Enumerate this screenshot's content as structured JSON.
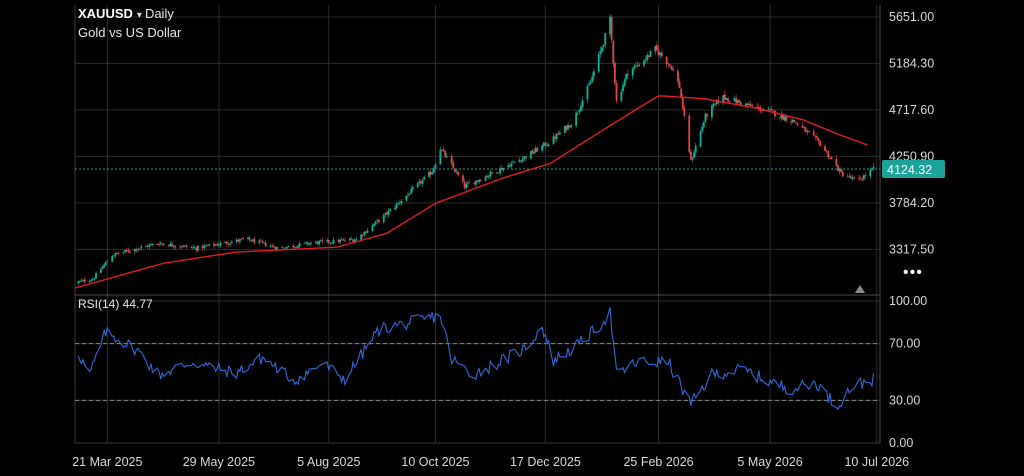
{
  "header": {
    "symbol": "XAUUSD",
    "caret": "▾",
    "timeframe": "Daily",
    "subtitle": "Gold vs US Dollar"
  },
  "colors": {
    "background": "#000000",
    "up_candle": "#0bb39a",
    "down_candle": "#e04848",
    "moving_average": "#e01c24",
    "rsi_line": "#2f6bd8",
    "price_line": "#1aa39a",
    "price_badge": "#1aa39a",
    "grid": "#2b2b2b"
  },
  "icons": {
    "more": "more-dots-icon",
    "scroll": "triangle-up-icon"
  },
  "more_glyph": "•••",
  "current_price_label": "4124.32",
  "rsi_label": "RSI(14) 44.77",
  "chart_data": [
    {
      "type": "candlestick",
      "title": "XAUUSD ▾ Daily",
      "subtitle": "Gold vs US Dollar",
      "y_ticks": [
        "5651.00",
        "5184.30",
        "4717.60",
        "4250.90",
        "3784.20",
        "3317.50"
      ],
      "y_tick_values": [
        5651.0,
        5184.3,
        4717.6,
        4250.9,
        3784.2,
        3317.5
      ],
      "ylim": [
        2900,
        5770
      ],
      "x_ticks": [
        "21 Mar 2025",
        "29 May 2025",
        "5 Aug 2025",
        "10 Oct 2025",
        "17 Dec 2025",
        "25 Feb 2026",
        "5 May 2026",
        "10 Jul 2026"
      ],
      "x_tick_dates": [
        "2025-03-21",
        "2025-05-29",
        "2025-08-05",
        "2025-10-10",
        "2025-12-17",
        "2026-02-25",
        "2026-05-05",
        "2026-07-10"
      ],
      "xlim": [
        "2025-03-01",
        "2026-07-12"
      ],
      "current_price": 4124.32,
      "grid": true,
      "close_anchors": [
        {
          "date": "2025-03-01",
          "close": 2980
        },
        {
          "date": "2025-03-12",
          "close": 3020
        },
        {
          "date": "2025-03-24",
          "close": 3260
        },
        {
          "date": "2025-04-07",
          "close": 3320
        },
        {
          "date": "2025-04-22",
          "close": 3380
        },
        {
          "date": "2025-05-15",
          "close": 3330
        },
        {
          "date": "2025-06-15",
          "close": 3420
        },
        {
          "date": "2025-07-05",
          "close": 3330
        },
        {
          "date": "2025-07-25",
          "close": 3380
        },
        {
          "date": "2025-08-10",
          "close": 3400
        },
        {
          "date": "2025-08-22",
          "close": 3420
        },
        {
          "date": "2025-09-08",
          "close": 3650
        },
        {
          "date": "2025-09-25",
          "close": 3900
        },
        {
          "date": "2025-10-08",
          "close": 4100
        },
        {
          "date": "2025-10-13",
          "close": 4330
        },
        {
          "date": "2025-10-20",
          "close": 4160
        },
        {
          "date": "2025-10-28",
          "close": 3950
        },
        {
          "date": "2025-11-15",
          "close": 4090
        },
        {
          "date": "2025-12-05",
          "close": 4250
        },
        {
          "date": "2025-12-20",
          "close": 4400
        },
        {
          "date": "2026-01-03",
          "close": 4600
        },
        {
          "date": "2026-01-14",
          "close": 5000
        },
        {
          "date": "2026-01-22",
          "close": 5400
        },
        {
          "date": "2026-01-26",
          "close": 5620
        },
        {
          "date": "2026-01-30",
          "close": 4800
        },
        {
          "date": "2026-02-06",
          "close": 5100
        },
        {
          "date": "2026-02-15",
          "close": 5200
        },
        {
          "date": "2026-02-23",
          "close": 5330
        },
        {
          "date": "2026-03-05",
          "close": 5150
        },
        {
          "date": "2026-03-10",
          "close": 4950
        },
        {
          "date": "2026-03-17",
          "close": 4200
        },
        {
          "date": "2026-03-26",
          "close": 4650
        },
        {
          "date": "2026-04-05",
          "close": 4850
        },
        {
          "date": "2026-04-22",
          "close": 4760
        },
        {
          "date": "2026-05-05",
          "close": 4700
        },
        {
          "date": "2026-05-20",
          "close": 4600
        },
        {
          "date": "2026-06-05",
          "close": 4380
        },
        {
          "date": "2026-06-18",
          "close": 4080
        },
        {
          "date": "2026-06-28",
          "close": 4000
        },
        {
          "date": "2026-07-08",
          "close": 4124
        }
      ],
      "moving_average": [
        {
          "date": "2025-03-01",
          "value": 2930
        },
        {
          "date": "2025-04-25",
          "value": 3180
        },
        {
          "date": "2025-06-08",
          "value": 3290
        },
        {
          "date": "2025-08-10",
          "value": 3340
        },
        {
          "date": "2025-09-10",
          "value": 3480
        },
        {
          "date": "2025-10-10",
          "value": 3780
        },
        {
          "date": "2025-11-20",
          "value": 4030
        },
        {
          "date": "2025-12-20",
          "value": 4180
        },
        {
          "date": "2026-01-25",
          "value": 4550
        },
        {
          "date": "2026-02-25",
          "value": 4860
        },
        {
          "date": "2026-03-25",
          "value": 4830
        },
        {
          "date": "2026-04-25",
          "value": 4740
        },
        {
          "date": "2026-05-25",
          "value": 4620
        },
        {
          "date": "2026-06-15",
          "value": 4480
        },
        {
          "date": "2026-07-05",
          "value": 4360
        }
      ]
    },
    {
      "type": "line",
      "title": "RSI(14) 44.77",
      "series": [
        {
          "name": "RSI(14)"
        }
      ],
      "y_ticks": [
        "100.00",
        "70.00",
        "30.00",
        "0.00"
      ],
      "y_tick_values": [
        100,
        70,
        30,
        0
      ],
      "ylim": [
        0,
        100
      ],
      "reference_lines": [
        70,
        30
      ],
      "last_value": 44.77,
      "rsi_anchors": [
        {
          "date": "2025-03-01",
          "value": 68
        },
        {
          "date": "2025-03-10",
          "value": 48
        },
        {
          "date": "2025-03-20",
          "value": 78
        },
        {
          "date": "2025-04-08",
          "value": 66
        },
        {
          "date": "2025-04-22",
          "value": 48
        },
        {
          "date": "2025-05-12",
          "value": 57
        },
        {
          "date": "2025-06-08",
          "value": 49
        },
        {
          "date": "2025-06-25",
          "value": 60
        },
        {
          "date": "2025-07-15",
          "value": 44
        },
        {
          "date": "2025-08-01",
          "value": 56
        },
        {
          "date": "2025-08-15",
          "value": 45
        },
        {
          "date": "2025-09-05",
          "value": 80
        },
        {
          "date": "2025-09-25",
          "value": 85
        },
        {
          "date": "2025-10-13",
          "value": 90
        },
        {
          "date": "2025-10-20",
          "value": 59
        },
        {
          "date": "2025-11-02",
          "value": 48
        },
        {
          "date": "2025-11-15",
          "value": 55
        },
        {
          "date": "2025-12-05",
          "value": 67
        },
        {
          "date": "2025-12-15",
          "value": 82
        },
        {
          "date": "2025-12-22",
          "value": 58
        },
        {
          "date": "2026-01-05",
          "value": 68
        },
        {
          "date": "2026-01-20",
          "value": 83
        },
        {
          "date": "2026-01-26",
          "value": 92
        },
        {
          "date": "2026-01-30",
          "value": 48
        },
        {
          "date": "2026-02-12",
          "value": 57
        },
        {
          "date": "2026-03-03",
          "value": 57
        },
        {
          "date": "2026-03-17",
          "value": 27
        },
        {
          "date": "2026-03-30",
          "value": 48
        },
        {
          "date": "2026-04-18",
          "value": 52
        },
        {
          "date": "2026-05-05",
          "value": 43
        },
        {
          "date": "2026-05-18",
          "value": 38
        },
        {
          "date": "2026-06-03",
          "value": 42
        },
        {
          "date": "2026-06-15",
          "value": 26
        },
        {
          "date": "2026-06-25",
          "value": 40
        },
        {
          "date": "2026-07-08",
          "value": 45
        }
      ]
    }
  ]
}
